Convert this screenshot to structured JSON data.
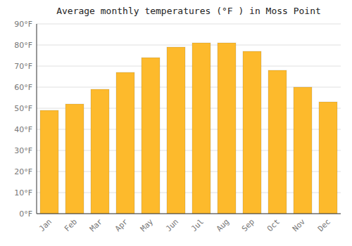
{
  "chart_data": {
    "type": "bar",
    "title": "Average monthly temperatures (°F ) in Moss Point",
    "categories": [
      "Jan",
      "Feb",
      "Mar",
      "Apr",
      "May",
      "Jun",
      "Jul",
      "Aug",
      "Sep",
      "Oct",
      "Nov",
      "Dec"
    ],
    "values": [
      49,
      52,
      59,
      67,
      74,
      79,
      81,
      81,
      77,
      68,
      60,
      53
    ],
    "color": "#FDBA2C",
    "ylim": [
      0,
      90
    ],
    "yticks": [
      {
        "value": 0,
        "label": "0°F"
      },
      {
        "value": 10,
        "label": "10°F"
      },
      {
        "value": 20,
        "label": "20°F"
      },
      {
        "value": 30,
        "label": "30°F"
      },
      {
        "value": 40,
        "label": "40°F"
      },
      {
        "value": 50,
        "label": "50°F"
      },
      {
        "value": 60,
        "label": "60°F"
      },
      {
        "value": 70,
        "label": "70°F"
      },
      {
        "value": 80,
        "label": "80°F"
      },
      {
        "value": 90,
        "label": "90°F"
      }
    ],
    "grid": true
  }
}
